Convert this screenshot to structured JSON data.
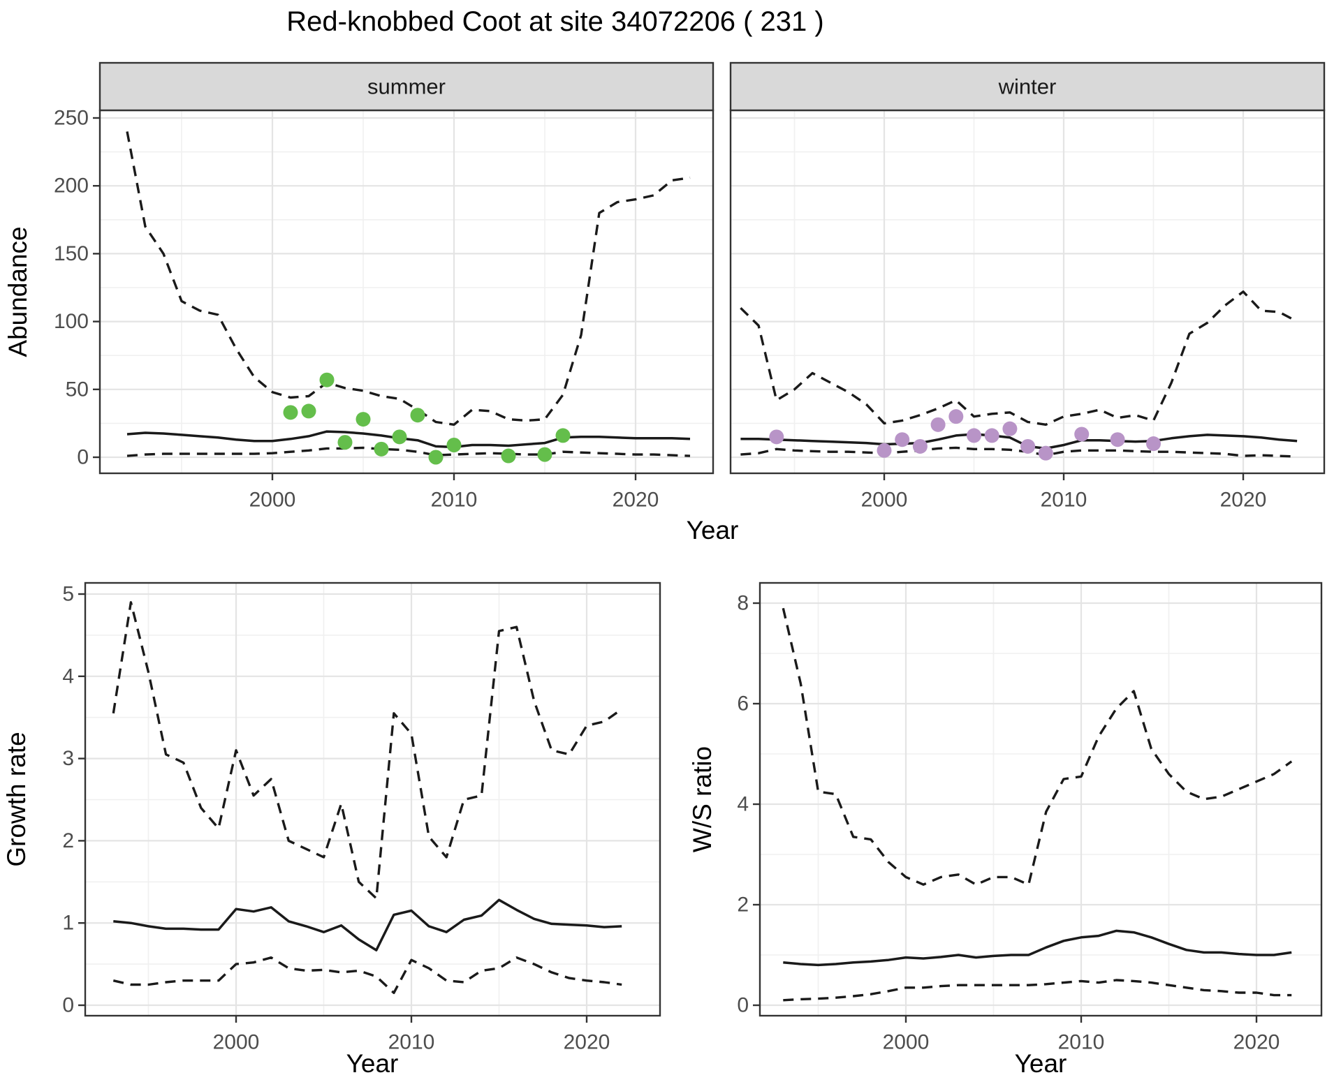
{
  "title": "Red-knobbed Coot at site 34072206 ( 231 )",
  "axes": {
    "year_label": "Year",
    "abundance_label": "Abundance",
    "growth_label": "Growth rate",
    "ws_label": "W/S ratio"
  },
  "colors": {
    "summer_point": "#64BE4B",
    "winter_point": "#B894C7",
    "line": "#1a1a1a",
    "strip_fill": "#D9D9D9",
    "panel_border": "#333333",
    "grid_major": "#E4E4E4",
    "grid_minor": "#F0F0F0",
    "tick_text": "#4d4d4d"
  },
  "chart_data": [
    {
      "type": "line",
      "facet_label": "summer",
      "title": "Abundance - summer facet",
      "xlabel": "Year",
      "ylabel": "Abundance",
      "x_ticks": [
        2000,
        2010,
        2020
      ],
      "y_ticks": [
        0,
        50,
        100,
        150,
        200,
        250
      ],
      "xlim": [
        1990.5,
        2024.3
      ],
      "ylim": [
        -12,
        255
      ],
      "legend_position": "none",
      "grid": true,
      "series": [
        {
          "name": "upper-ci",
          "style": "dashed",
          "years": [
            1992,
            1993,
            1994,
            1995,
            1996,
            1997,
            1998,
            1999,
            2000,
            2001,
            2002,
            2003,
            2004,
            2005,
            2006,
            2007,
            2008,
            2009,
            2010,
            2011,
            2012,
            2013,
            2014,
            2015,
            2016,
            2017,
            2018,
            2019,
            2020,
            2021,
            2022,
            2023
          ],
          "values": [
            240,
            170,
            150,
            115,
            108,
            105,
            80,
            59,
            48,
            44,
            45,
            55,
            51,
            49,
            45,
            43,
            35,
            26,
            24,
            35,
            34,
            28,
            27,
            28,
            46,
            90,
            180,
            188,
            190,
            193,
            204,
            206
          ]
        },
        {
          "name": "median",
          "style": "solid",
          "years": [
            1992,
            1993,
            1994,
            1995,
            1996,
            1997,
            1998,
            1999,
            2000,
            2001,
            2002,
            2003,
            2004,
            2005,
            2006,
            2007,
            2008,
            2009,
            2010,
            2011,
            2012,
            2013,
            2014,
            2015,
            2016,
            2017,
            2018,
            2019,
            2020,
            2021,
            2022,
            2023
          ],
          "values": [
            17,
            18,
            17.5,
            16.5,
            15.5,
            14.5,
            13,
            12,
            12,
            13.5,
            15.5,
            19,
            18.5,
            17.5,
            16,
            14,
            12.5,
            8,
            7.5,
            9,
            9,
            8.5,
            9.5,
            10.5,
            14.5,
            15,
            15,
            14.5,
            14,
            14,
            14,
            13.5
          ]
        },
        {
          "name": "lower-ci",
          "style": "dashed",
          "years": [
            1992,
            1993,
            1994,
            1995,
            1996,
            1997,
            1998,
            1999,
            2000,
            2001,
            2002,
            2003,
            2004,
            2005,
            2006,
            2007,
            2008,
            2009,
            2010,
            2011,
            2012,
            2013,
            2014,
            2015,
            2016,
            2017,
            2018,
            2019,
            2020,
            2021,
            2022,
            2023
          ],
          "values": [
            1,
            2,
            2.5,
            2.5,
            2.5,
            2.5,
            2.5,
            2.5,
            3,
            4,
            5,
            6.5,
            6.5,
            7,
            6,
            5.5,
            4,
            1.5,
            2,
            2.5,
            3,
            2.5,
            2,
            2,
            4,
            3.5,
            3,
            2.5,
            2,
            2,
            1.5,
            1
          ]
        },
        {
          "name": "observed-counts",
          "style": "points",
          "color": "#64BE4B",
          "years": [
            2001,
            2002,
            2003,
            2004,
            2005,
            2006,
            2007,
            2008,
            2009,
            2010,
            2013,
            2015,
            2016
          ],
          "values": [
            33,
            34,
            57,
            11,
            28,
            6,
            15,
            31,
            0,
            9,
            1,
            2,
            16
          ]
        }
      ]
    },
    {
      "type": "line",
      "facet_label": "winter",
      "title": "Abundance - winter facet",
      "xlabel": "Year",
      "ylabel": "Abundance",
      "x_ticks": [
        2000,
        2010,
        2020
      ],
      "y_ticks": [
        0,
        50,
        100,
        150,
        200,
        250
      ],
      "xlim": [
        1991.4,
        2024.5
      ],
      "ylim": [
        -12,
        255
      ],
      "legend_position": "none",
      "grid": true,
      "series": [
        {
          "name": "upper-ci",
          "style": "dashed",
          "years": [
            1992,
            1993,
            1994,
            1995,
            1996,
            1997,
            1998,
            1999,
            2000,
            2001,
            2002,
            2003,
            2004,
            2005,
            2006,
            2007,
            2008,
            2009,
            2010,
            2011,
            2012,
            2013,
            2014,
            2015,
            2016,
            2017,
            2018,
            2019,
            2020,
            2021,
            2022,
            2023
          ],
          "values": [
            110,
            97,
            42,
            50,
            62,
            55,
            48,
            39,
            25,
            27,
            31,
            36,
            42,
            30,
            32,
            33,
            26,
            24,
            30,
            32,
            35,
            29,
            31,
            27,
            55,
            91,
            99,
            112,
            122,
            108,
            107,
            100
          ]
        },
        {
          "name": "median",
          "style": "solid",
          "years": [
            1992,
            1993,
            1994,
            1995,
            1996,
            1997,
            1998,
            1999,
            2000,
            2001,
            2002,
            2003,
            2004,
            2005,
            2006,
            2007,
            2008,
            2009,
            2010,
            2011,
            2012,
            2013,
            2014,
            2015,
            2016,
            2017,
            2018,
            2019,
            2020,
            2021,
            2022,
            2023
          ],
          "values": [
            13.5,
            13.5,
            13,
            12.5,
            12,
            11.5,
            11,
            10.5,
            9.5,
            10,
            10.5,
            13,
            16,
            17,
            16,
            14.5,
            8,
            6.5,
            9,
            12.5,
            12.5,
            12,
            11.5,
            12,
            14,
            15.5,
            16.5,
            16,
            15.5,
            14.5,
            13,
            12
          ]
        },
        {
          "name": "lower-ci",
          "style": "dashed",
          "years": [
            1992,
            1993,
            1994,
            1995,
            1996,
            1997,
            1998,
            1999,
            2000,
            2001,
            2002,
            2003,
            2004,
            2005,
            2006,
            2007,
            2008,
            2009,
            2010,
            2011,
            2012,
            2013,
            2014,
            2015,
            2016,
            2017,
            2018,
            2019,
            2020,
            2021,
            2022,
            2023
          ],
          "values": [
            2,
            3,
            6,
            5,
            4.5,
            4,
            4,
            3.5,
            3,
            4,
            5,
            6.5,
            7,
            6,
            6,
            5.5,
            4,
            1.5,
            4,
            5,
            5,
            5,
            4.5,
            4,
            4,
            3.5,
            3,
            2.5,
            1,
            1.5,
            1,
            0.5
          ]
        },
        {
          "name": "observed-counts",
          "style": "points",
          "color": "#B894C7",
          "years": [
            1994,
            2000,
            2001,
            2002,
            2003,
            2004,
            2005,
            2006,
            2007,
            2008,
            2009,
            2011,
            2013,
            2015
          ],
          "values": [
            15,
            5,
            13,
            8,
            24,
            30,
            16,
            16,
            21,
            8,
            3,
            17,
            13,
            10
          ]
        }
      ]
    },
    {
      "type": "line",
      "facet_label": null,
      "title": "Growth rate",
      "xlabel": "Year",
      "ylabel": "Growth rate",
      "x_ticks": [
        2000,
        2010,
        2020
      ],
      "y_ticks": [
        0,
        1,
        2,
        3,
        4,
        5
      ],
      "xlim": [
        1991.4,
        2024.2
      ],
      "ylim": [
        -0.13,
        5.13
      ],
      "legend_position": "none",
      "grid": true,
      "series": [
        {
          "name": "upper-ci",
          "style": "dashed",
          "years": [
            1993,
            1994,
            1995,
            1996,
            1997,
            1998,
            1999,
            2000,
            2001,
            2002,
            2003,
            2004,
            2005,
            2006,
            2007,
            2008,
            2009,
            2010,
            2011,
            2012,
            2013,
            2014,
            2015,
            2016,
            2017,
            2018,
            2019,
            2020,
            2021,
            2022
          ],
          "values": [
            3.55,
            4.9,
            4.05,
            3.05,
            2.95,
            2.4,
            2.15,
            3.1,
            2.55,
            2.75,
            2.0,
            1.9,
            1.8,
            2.45,
            1.5,
            1.3,
            3.55,
            3.3,
            2.05,
            1.8,
            2.5,
            2.55,
            4.55,
            4.6,
            3.7,
            3.1,
            3.05,
            3.4,
            3.45,
            3.6
          ]
        },
        {
          "name": "median",
          "style": "solid",
          "years": [
            1993,
            1994,
            1995,
            1996,
            1997,
            1998,
            1999,
            2000,
            2001,
            2002,
            2003,
            2004,
            2005,
            2006,
            2007,
            2008,
            2009,
            2010,
            2011,
            2012,
            2013,
            2014,
            2015,
            2016,
            2017,
            2018,
            2019,
            2020,
            2021,
            2022
          ],
          "values": [
            1.02,
            1.0,
            0.96,
            0.93,
            0.93,
            0.92,
            0.92,
            1.17,
            1.14,
            1.19,
            1.02,
            0.96,
            0.89,
            0.97,
            0.8,
            0.67,
            1.1,
            1.15,
            0.96,
            0.89,
            1.04,
            1.09,
            1.28,
            1.16,
            1.05,
            0.99,
            0.98,
            0.97,
            0.95,
            0.96
          ]
        },
        {
          "name": "lower-ci",
          "style": "dashed",
          "years": [
            1993,
            1994,
            1995,
            1996,
            1997,
            1998,
            1999,
            2000,
            2001,
            2002,
            2003,
            2004,
            2005,
            2006,
            2007,
            2008,
            2009,
            2010,
            2011,
            2012,
            2013,
            2014,
            2015,
            2016,
            2017,
            2018,
            2019,
            2020,
            2021,
            2022
          ],
          "values": [
            0.3,
            0.25,
            0.25,
            0.28,
            0.3,
            0.3,
            0.3,
            0.5,
            0.52,
            0.58,
            0.45,
            0.42,
            0.43,
            0.4,
            0.42,
            0.35,
            0.15,
            0.55,
            0.45,
            0.3,
            0.28,
            0.42,
            0.45,
            0.58,
            0.5,
            0.4,
            0.33,
            0.3,
            0.28,
            0.25
          ]
        }
      ]
    },
    {
      "type": "line",
      "facet_label": null,
      "title": "W/S ratio",
      "xlabel": "Year",
      "ylabel": "W/S ratio",
      "x_ticks": [
        2000,
        2010,
        2020
      ],
      "y_ticks": [
        0,
        2,
        4,
        6,
        8
      ],
      "xlim": [
        1991.7,
        2023.7
      ],
      "ylim": [
        -0.2,
        8.4
      ],
      "legend_position": "none",
      "grid": true,
      "series": [
        {
          "name": "upper-ci",
          "style": "dashed",
          "years": [
            1993,
            1994,
            1995,
            1996,
            1997,
            1998,
            1999,
            2000,
            2001,
            2002,
            2003,
            2004,
            2005,
            2006,
            2007,
            2008,
            2009,
            2010,
            2011,
            2012,
            2013,
            2014,
            2015,
            2016,
            2017,
            2018,
            2019,
            2020,
            2021,
            2022
          ],
          "values": [
            7.9,
            6.4,
            4.25,
            4.2,
            3.35,
            3.3,
            2.85,
            2.55,
            2.4,
            2.55,
            2.6,
            2.4,
            2.55,
            2.55,
            2.4,
            3.85,
            4.5,
            4.55,
            5.35,
            5.9,
            6.25,
            5.1,
            4.6,
            4.25,
            4.1,
            4.15,
            4.3,
            4.45,
            4.6,
            4.85
          ]
        },
        {
          "name": "median",
          "style": "solid",
          "years": [
            1993,
            1994,
            1995,
            1996,
            1997,
            1998,
            1999,
            2000,
            2001,
            2002,
            2003,
            2004,
            2005,
            2006,
            2007,
            2008,
            2009,
            2010,
            2011,
            2012,
            2013,
            2014,
            2015,
            2016,
            2017,
            2018,
            2019,
            2020,
            2021,
            2022
          ],
          "values": [
            0.85,
            0.82,
            0.8,
            0.82,
            0.85,
            0.87,
            0.9,
            0.95,
            0.93,
            0.96,
            1.0,
            0.95,
            0.98,
            1.0,
            1.0,
            1.15,
            1.28,
            1.35,
            1.38,
            1.48,
            1.45,
            1.35,
            1.22,
            1.1,
            1.05,
            1.05,
            1.02,
            1.0,
            1.0,
            1.05
          ]
        },
        {
          "name": "lower-ci",
          "style": "dashed",
          "years": [
            1993,
            1994,
            1995,
            1996,
            1997,
            1998,
            1999,
            2000,
            2001,
            2002,
            2003,
            2004,
            2005,
            2006,
            2007,
            2008,
            2009,
            2010,
            2011,
            2012,
            2013,
            2014,
            2015,
            2016,
            2017,
            2018,
            2019,
            2020,
            2021,
            2022
          ],
          "values": [
            0.1,
            0.12,
            0.13,
            0.15,
            0.18,
            0.22,
            0.28,
            0.35,
            0.35,
            0.38,
            0.4,
            0.4,
            0.4,
            0.4,
            0.4,
            0.42,
            0.45,
            0.48,
            0.45,
            0.5,
            0.48,
            0.45,
            0.4,
            0.35,
            0.3,
            0.28,
            0.25,
            0.25,
            0.2,
            0.2
          ]
        }
      ]
    }
  ]
}
